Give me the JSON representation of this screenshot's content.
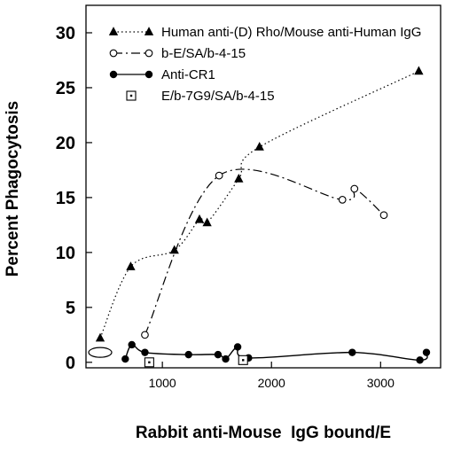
{
  "chart_data": {
    "type": "line",
    "xlabel": "Rabbit anti-Mouse  IgG bound/E",
    "ylabel": "Percent Phagocytosis",
    "xlim": [
      300,
      3550
    ],
    "ylim": [
      -0.5,
      32.5
    ],
    "x_ticks": [
      1000,
      2000,
      3000
    ],
    "y_ticks": [
      0,
      5,
      10,
      15,
      20,
      25,
      30
    ],
    "grid": false,
    "legend_position": "top-left",
    "series": [
      {
        "name": "Human anti-(D) Rho/Mouse anti-Human IgG",
        "marker": "filled-triangle",
        "line_style": "dotted",
        "x": [
          430,
          710,
          1110,
          1340,
          1410,
          1700,
          1890,
          3350
        ],
        "y": [
          2.2,
          8.7,
          10.2,
          13.0,
          12.7,
          16.7,
          19.6,
          26.5
        ]
      },
      {
        "name": "b-E/SA/b-4-15",
        "marker": "open-circle",
        "line_style": "dash-dot",
        "x": [
          840,
          1520,
          2650,
          2760,
          3030
        ],
        "y": [
          2.5,
          17.0,
          14.8,
          15.8,
          13.4
        ]
      },
      {
        "name": "Anti-CR1",
        "marker": "filled-circle",
        "line_style": "solid",
        "x": [
          660,
          720,
          840,
          1240,
          1510,
          1580,
          1690,
          1790,
          2740,
          3360,
          3420
        ],
        "y": [
          0.3,
          1.6,
          0.9,
          0.7,
          0.7,
          0.3,
          1.4,
          0.4,
          0.9,
          0.2,
          0.9
        ]
      },
      {
        "name": "E/b-7G9/SA/b-4-15",
        "marker": "dotted-square",
        "line_style": "none",
        "x": [
          880,
          1740
        ],
        "y": [
          0.0,
          0.2
        ]
      }
    ],
    "annotations": [
      {
        "shape": "open-ellipse",
        "x": 430,
        "y": 0.9
      }
    ]
  }
}
